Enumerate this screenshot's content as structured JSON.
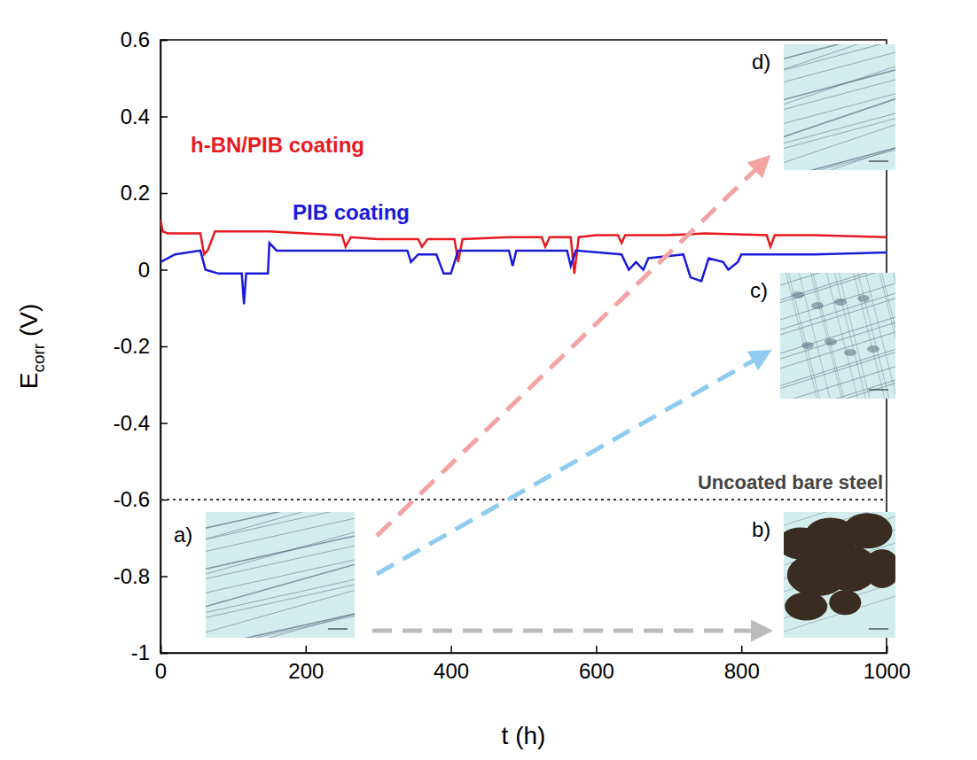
{
  "chart_data": {
    "type": "line",
    "xlabel": "t (h)",
    "ylabel": [
      "E",
      "corr",
      " (V)"
    ],
    "xlim": [
      0,
      1000
    ],
    "ylim": [
      -1,
      0.6
    ],
    "xticks": [
      0,
      200,
      400,
      600,
      800,
      1000
    ],
    "yticks": [
      -1,
      -0.8,
      -0.6,
      -0.4,
      -0.2,
      0,
      0.2,
      0.4,
      0.6
    ],
    "series": [
      {
        "name": "h-BN/PIB coating",
        "color": "#e8191f",
        "line_style": "solid",
        "x": [
          0,
          3,
          10,
          55,
          60,
          65,
          75,
          150,
          200,
          250,
          255,
          262,
          300,
          355,
          360,
          368,
          405,
          410,
          416,
          480,
          525,
          530,
          536,
          565,
          570,
          576,
          600,
          630,
          635,
          640,
          700,
          750,
          835,
          840,
          846,
          900,
          1000
        ],
        "values": [
          0.13,
          0.1,
          0.095,
          0.095,
          0.04,
          0.05,
          0.1,
          0.1,
          0.095,
          0.09,
          0.06,
          0.085,
          0.08,
          0.08,
          0.06,
          0.08,
          0.08,
          0.02,
          0.08,
          0.085,
          0.085,
          0.06,
          0.085,
          0.085,
          -0.01,
          0.085,
          0.09,
          0.09,
          0.07,
          0.09,
          0.09,
          0.095,
          0.09,
          0.06,
          0.09,
          0.09,
          0.085
        ]
      },
      {
        "name": "PIB coating",
        "color": "#1a1adb",
        "line_style": "solid",
        "x": [
          0,
          20,
          55,
          62,
          80,
          112,
          115,
          118,
          148,
          150,
          160,
          250,
          340,
          345,
          355,
          380,
          390,
          400,
          410,
          480,
          485,
          490,
          560,
          565,
          572,
          635,
          645,
          655,
          665,
          672,
          720,
          730,
          745,
          755,
          775,
          782,
          795,
          800,
          900,
          1000
        ],
        "values": [
          0.02,
          0.04,
          0.05,
          0.0,
          -0.01,
          -0.01,
          -0.09,
          -0.01,
          -0.01,
          0.07,
          0.05,
          0.05,
          0.05,
          0.02,
          0.04,
          0.04,
          -0.01,
          -0.01,
          0.05,
          0.05,
          0.01,
          0.05,
          0.05,
          0.01,
          0.05,
          0.04,
          0.0,
          0.02,
          0.0,
          0.03,
          0.04,
          -0.02,
          -0.03,
          0.03,
          0.02,
          0.0,
          0.02,
          0.04,
          0.04,
          0.045
        ]
      },
      {
        "name": "Uncoated bare steel",
        "color": "#333333",
        "line_style": "dotted",
        "x": [
          0,
          1000
        ],
        "values": [
          -0.6,
          -0.6
        ]
      }
    ],
    "insets": [
      "a)",
      "b)",
      "c)",
      "d)"
    ]
  }
}
